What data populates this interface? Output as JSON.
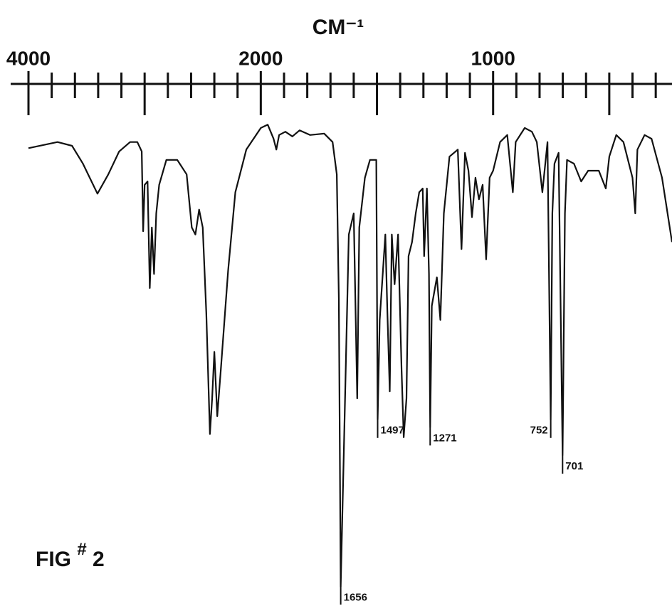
{
  "chart_data": {
    "type": "spectrum",
    "x_label": "CM⁻¹",
    "figure_label": {
      "prefix": "FIG",
      "mark": "#",
      "number": "2"
    },
    "xlim": [
      4000,
      230
    ],
    "ylim": [
      0,
      100
    ],
    "scale_change": {
      "at": 2000,
      "factor": 2
    },
    "xticks": [
      4000,
      2000,
      1000
    ],
    "xticks_minor": [
      3800,
      3600,
      3400,
      3200,
      3000,
      2800,
      2600,
      2400,
      2200,
      1900,
      1800,
      1700,
      1600,
      1500,
      1400,
      1300,
      1200,
      1100,
      900,
      800,
      700,
      600,
      500,
      400,
      300
    ],
    "color": "#111111",
    "x": [
      4000,
      3750,
      3625,
      3531,
      3406,
      3313,
      3219,
      3125,
      3063,
      3025,
      3013,
      3000,
      2975,
      2956,
      2938,
      2919,
      2900,
      2875,
      2813,
      2719,
      2638,
      2594,
      2563,
      2531,
      2500,
      2469,
      2438,
      2419,
      2400,
      2375,
      2344,
      2281,
      2219,
      2125,
      2000,
      1970,
      1945,
      1933,
      1921,
      1894,
      1864,
      1833,
      1788,
      1727,
      1691,
      1673,
      1664,
      1656,
      1640,
      1621,
      1600,
      1585,
      1576,
      1552,
      1530,
      1503,
      1497,
      1488,
      1464,
      1455,
      1445,
      1436,
      1424,
      1409,
      1394,
      1385,
      1373,
      1364,
      1349,
      1333,
      1318,
      1303,
      1297,
      1285,
      1276,
      1271,
      1264,
      1242,
      1227,
      1212,
      1188,
      1152,
      1136,
      1121,
      1106,
      1091,
      1076,
      1061,
      1045,
      1030,
      1015,
      1000,
      970,
      939,
      915,
      903,
      864,
      833,
      812,
      788,
      766,
      752,
      745,
      736,
      718,
      701,
      691,
      682,
      652,
      621,
      591,
      545,
      515,
      500,
      470,
      439,
      400,
      388,
      379,
      348,
      318,
      273,
      230
    ],
    "values": [
      94.2,
      95.5,
      94.7,
      90.9,
      84.5,
      88.6,
      93.5,
      95.5,
      95.5,
      93.5,
      76.5,
      86.4,
      87.1,
      64.4,
      77.3,
      67.4,
      80.3,
      86.4,
      91.7,
      91.7,
      88.6,
      77.3,
      75.8,
      81.1,
      77.3,
      59.1,
      33.3,
      40.9,
      50.8,
      37.1,
      47.0,
      68.2,
      84.8,
      93.9,
      98.5,
      99.2,
      96.2,
      93.9,
      97.0,
      97.7,
      96.7,
      98.0,
      97.0,
      97.3,
      95.5,
      88.6,
      62.1,
      0.8,
      34.8,
      75.8,
      80.3,
      40.9,
      77.3,
      87.9,
      91.7,
      91.7,
      36.4,
      57.6,
      75.8,
      59.1,
      42.4,
      75.8,
      65.2,
      75.8,
      47.0,
      32.6,
      40.9,
      71.2,
      74.2,
      80.3,
      84.8,
      85.6,
      71.2,
      85.6,
      67.4,
      34.8,
      60.6,
      66.7,
      57.6,
      80.3,
      92.4,
      93.9,
      72.7,
      93.2,
      89.4,
      79.5,
      87.9,
      83.3,
      86.4,
      70.5,
      87.9,
      89.4,
      95.5,
      97.0,
      84.8,
      95.5,
      98.5,
      97.7,
      95.5,
      84.8,
      95.5,
      36.4,
      80.3,
      90.9,
      93.2,
      28.8,
      80.3,
      91.7,
      90.9,
      87.1,
      89.4,
      89.4,
      85.6,
      92.4,
      97.0,
      95.5,
      87.9,
      80.3,
      93.9,
      97.0,
      96.2,
      87.9,
      74.2
    ],
    "peak_labels": [
      1656,
      1497,
      1271,
      752,
      701
    ]
  }
}
